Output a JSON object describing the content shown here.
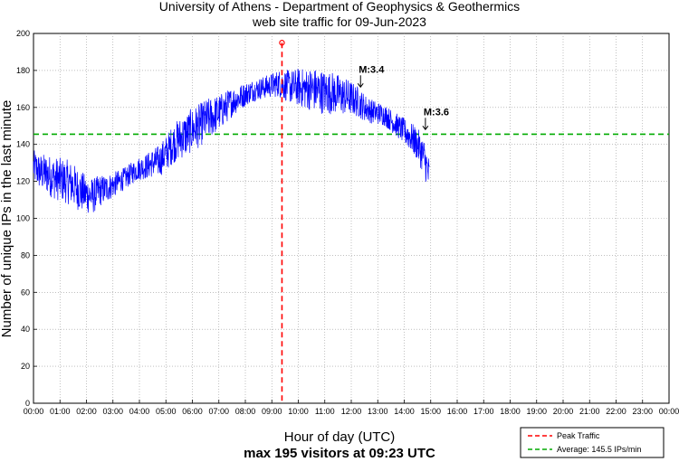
{
  "chart_data": {
    "type": "line",
    "title": "University of Athens - Department of Geophysics & Geothermics",
    "subtitle": "web site traffic for 09-Jun-2023",
    "xlabel": "Hour of day (UTC)",
    "ylabel": "Number of unique IPs in the last minute",
    "footer": "max 195 visitors at 09:23 UTC",
    "x_ticks": [
      "00:00",
      "01:00",
      "02:00",
      "03:00",
      "04:00",
      "05:00",
      "06:00",
      "07:00",
      "08:00",
      "09:00",
      "10:00",
      "11:00",
      "12:00",
      "13:00",
      "14:00",
      "15:00",
      "16:00",
      "17:00",
      "18:00",
      "19:00",
      "20:00",
      "21:00",
      "22:00",
      "23:00",
      "00:00"
    ],
    "y_ticks": [
      "0",
      "20",
      "40",
      "60",
      "80",
      "100",
      "120",
      "140",
      "160",
      "180",
      "200"
    ],
    "xlim_hours": [
      0,
      24
    ],
    "ylim": [
      0,
      200
    ],
    "grid": true,
    "series": [
      {
        "name": "",
        "color": "#0000ff",
        "x_hours": [
          0.0,
          0.25,
          0.5,
          0.75,
          1.0,
          1.25,
          1.5,
          1.75,
          2.0,
          2.25,
          2.5,
          2.75,
          3.0,
          3.25,
          3.5,
          3.75,
          4.0,
          4.25,
          4.5,
          4.75,
          5.0,
          5.25,
          5.5,
          5.75,
          6.0,
          6.25,
          6.5,
          6.75,
          7.0,
          7.25,
          7.5,
          7.75,
          8.0,
          8.25,
          8.5,
          8.75,
          9.0,
          9.25,
          9.5,
          9.75,
          10.0,
          10.25,
          10.5,
          10.75,
          11.0,
          11.25,
          11.5,
          11.75,
          12.0,
          12.25,
          12.5,
          12.75,
          13.0,
          13.25,
          13.5,
          13.75,
          14.0,
          14.25,
          14.5,
          14.75,
          14.95
        ],
        "values": [
          128,
          125,
          124,
          122,
          121,
          120,
          118,
          115,
          113,
          112,
          115,
          116,
          118,
          120,
          122,
          125,
          127,
          128,
          130,
          131,
          135,
          140,
          143,
          145,
          148,
          150,
          153,
          155,
          157,
          160,
          163,
          165,
          167,
          169,
          170,
          171,
          172,
          173,
          172,
          171,
          171,
          170,
          170,
          169,
          168,
          168,
          167,
          166,
          165,
          163,
          160,
          158,
          157,
          156,
          153,
          150,
          147,
          144,
          140,
          133,
          122
        ]
      }
    ],
    "peak": {
      "x_hours": 9.383,
      "value": 195,
      "marker_color": "#ff0000"
    },
    "average": {
      "value": 145.5,
      "color": "#00aa00"
    },
    "annotations": [
      {
        "label": "M:3.4",
        "x_hours": 12.35,
        "arrow_to": 171
      },
      {
        "label": "M:3.6",
        "x_hours": 14.8,
        "arrow_to": 148
      }
    ],
    "legend": {
      "position": "bottom-right",
      "entries": [
        {
          "label": "Peak Traffic",
          "color": "#ff0000",
          "style": "dashed"
        },
        {
          "label": "Average: 145.5 IPs/min",
          "color": "#00aa00",
          "style": "dashed"
        }
      ]
    }
  }
}
